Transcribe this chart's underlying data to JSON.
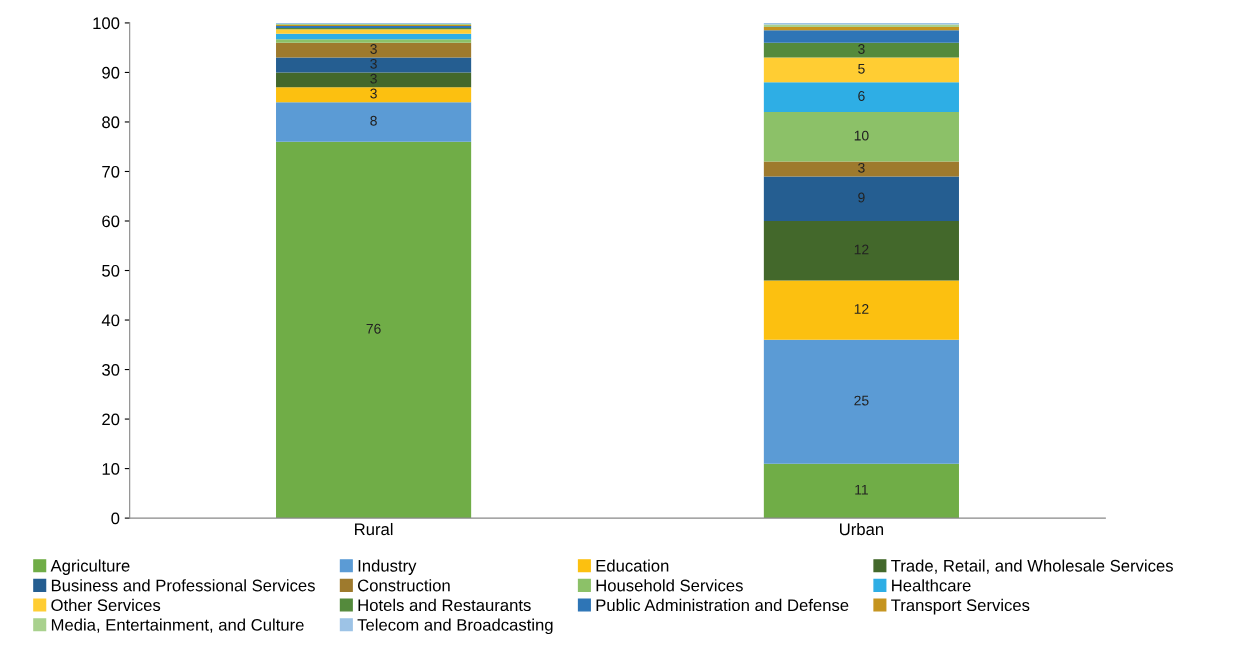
{
  "chart_data": {
    "type": "bar",
    "stacked": true,
    "categories": [
      "Rural",
      "Urban"
    ],
    "ylim": [
      0,
      100
    ],
    "yticks": [
      0,
      10,
      20,
      30,
      40,
      50,
      60,
      70,
      80,
      90,
      100
    ],
    "grid": false,
    "legend": "bottom",
    "series": [
      {
        "name": "Agriculture",
        "color": "#70ad47",
        "values": [
          76,
          11
        ],
        "value_labels": [
          "76",
          "11"
        ]
      },
      {
        "name": "Industry",
        "color": "#5b9bd5",
        "values": [
          8,
          25
        ],
        "value_labels": [
          "8",
          "25"
        ]
      },
      {
        "name": "Education",
        "color": "#fcc010",
        "values": [
          3,
          12
        ],
        "value_labels": [
          "3",
          "12"
        ]
      },
      {
        "name": "Trade, Retail, and Wholesale Services",
        "color": "#43682b",
        "values": [
          3,
          12
        ],
        "value_labels": [
          "3",
          "12"
        ]
      },
      {
        "name": "Business and Professional Services",
        "color": "#255e91",
        "values": [
          3,
          9
        ],
        "value_labels": [
          "3",
          "9"
        ]
      },
      {
        "name": "Construction",
        "color": "#9e7a2d",
        "values": [
          3,
          3
        ],
        "value_labels": [
          "3",
          "3"
        ]
      },
      {
        "name": "Household Services",
        "color": "#8cc168",
        "values": [
          0.7,
          10
        ],
        "value_labels": [
          null,
          "10"
        ]
      },
      {
        "name": "Healthcare",
        "color": "#2eaee5",
        "values": [
          1.1,
          6
        ],
        "value_labels": [
          null,
          "6"
        ]
      },
      {
        "name": "Other Services",
        "color": "#ffcd33",
        "values": [
          0.9,
          5
        ],
        "value_labels": [
          null,
          "5"
        ]
      },
      {
        "name": "Hotels and Restaurants",
        "color": "#548a3c",
        "values": [
          0.3,
          3
        ],
        "value_labels": [
          null,
          "3"
        ]
      },
      {
        "name": "Public Administration and Defense",
        "color": "#2e75b6",
        "values": [
          0.4,
          2.5
        ],
        "value_labels": [
          null,
          null
        ]
      },
      {
        "name": "Transport Services",
        "color": "#c5941f",
        "values": [
          0.2,
          0.7
        ],
        "value_labels": [
          null,
          null
        ]
      },
      {
        "name": "Media, Entertainment, and Culture",
        "color": "#a9d18e",
        "values": [
          0.2,
          0.5
        ],
        "value_labels": [
          null,
          null
        ]
      },
      {
        "name": "Telecom and Broadcasting",
        "color": "#9dc3e6",
        "values": [
          0.2,
          0.3
        ],
        "value_labels": [
          null,
          null
        ]
      }
    ]
  }
}
